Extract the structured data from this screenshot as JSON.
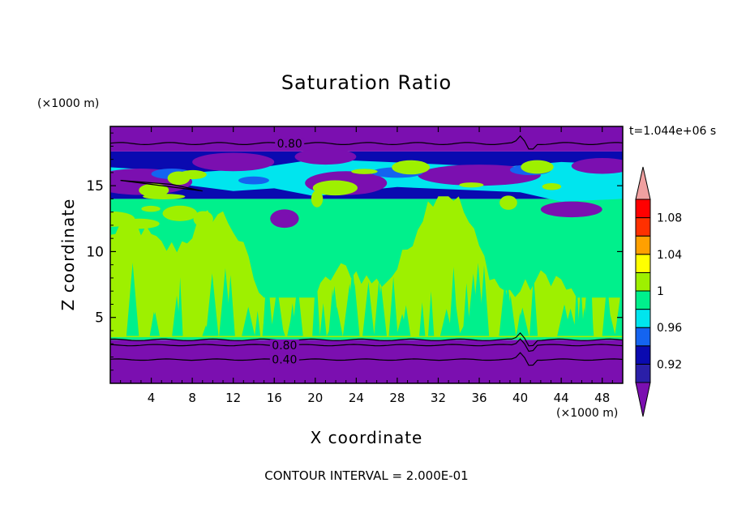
{
  "chart_data": {
    "type": "heatmap",
    "title": "Saturation Ratio",
    "xlabel": "X coordinate",
    "ylabel": "Z coordinate",
    "x_unit": "(×1000 m)",
    "y_unit": "(×1000 m)",
    "time_label": "t=1.044e+06 s",
    "footnote": "CONTOUR INTERVAL = 2.000E-01",
    "xlim": [
      0,
      50
    ],
    "ylim": [
      0,
      19.5
    ],
    "x_ticks": [
      4,
      8,
      12,
      16,
      20,
      24,
      28,
      32,
      36,
      40,
      44,
      48
    ],
    "y_ticks": [
      5,
      10,
      15
    ],
    "colorbar": {
      "tick_labels": [
        "0.92",
        "0.96",
        "1",
        "1.04",
        "1.08"
      ],
      "levels": [
        0.9,
        0.92,
        0.94,
        0.96,
        0.98,
        1.0,
        1.02,
        1.04,
        1.06,
        1.08,
        1.1
      ],
      "colors": [
        "#7b0fb0",
        "#2a1fa8",
        "#0a0ab0",
        "#1464f0",
        "#00e5ee",
        "#00f08c",
        "#9ef000",
        "#ffff00",
        "#ffa000",
        "#ff3000",
        "#ff0000",
        "#f0a0a0"
      ]
    },
    "contour_labels": [
      {
        "text": "0.80",
        "x": 17.5,
        "z": 18.2
      },
      {
        "text": "0.80",
        "x": 17.0,
        "z": 2.9
      },
      {
        "text": "0.40",
        "x": 17.0,
        "z": 1.8
      }
    ],
    "regions": [
      {
        "level": "< 0.90",
        "z_range": [
          0,
          3.3
        ]
      },
      {
        "level": "0.98–1.02 (mixed)",
        "z_range": [
          3.3,
          14
        ]
      },
      {
        "level": "0.92–1.00 (banded)",
        "z_range": [
          14,
          17.5
        ]
      },
      {
        "level": "< 0.90",
        "z_range": [
          17.5,
          19.5
        ]
      }
    ]
  }
}
